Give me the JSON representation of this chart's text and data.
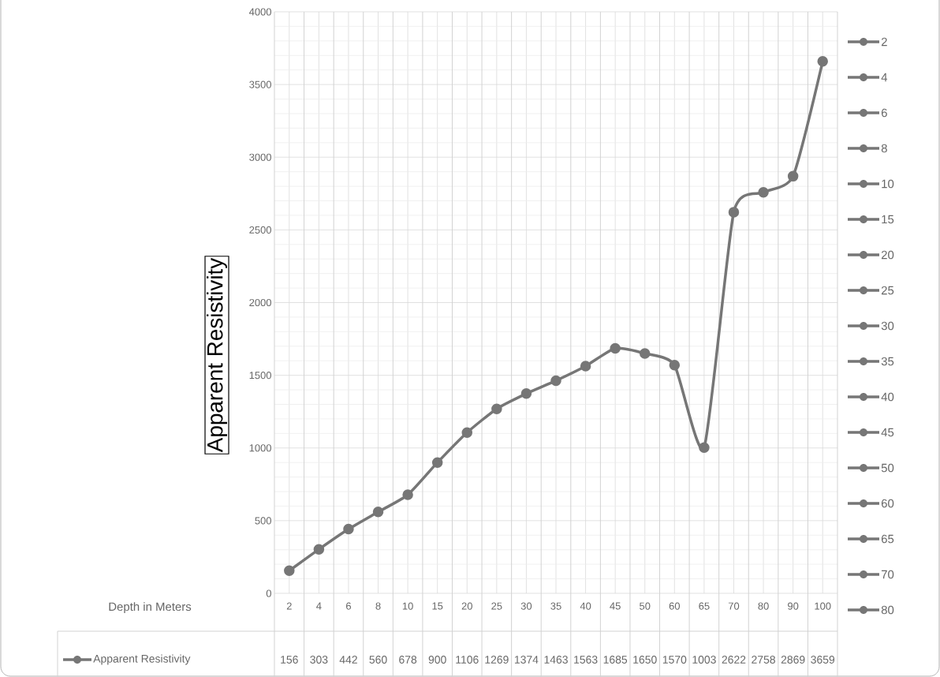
{
  "chart_data": {
    "type": "line",
    "ylabel": "Apparent Resistivity",
    "xlabel": "Depth in Meters",
    "categories": [
      "2",
      "4",
      "6",
      "8",
      "10",
      "15",
      "20",
      "25",
      "30",
      "35",
      "40",
      "45",
      "50",
      "60",
      "65",
      "70",
      "80",
      "90",
      "100"
    ],
    "series": [
      {
        "name": "Apparent Resistivity",
        "color": "#767676",
        "values": [
          156,
          303,
          442,
          560,
          678,
          900,
          1106,
          1269,
          1374,
          1463,
          1563,
          1685,
          1650,
          1570,
          1003,
          2622,
          2758,
          2869,
          3659
        ]
      }
    ],
    "ylim": [
      0,
      4000
    ],
    "yticks": [
      0,
      500,
      1000,
      1500,
      2000,
      2500,
      3000,
      3500,
      4000
    ],
    "grid": true,
    "marker": "circle",
    "legend": "bottom left",
    "data_labels": true
  }
}
